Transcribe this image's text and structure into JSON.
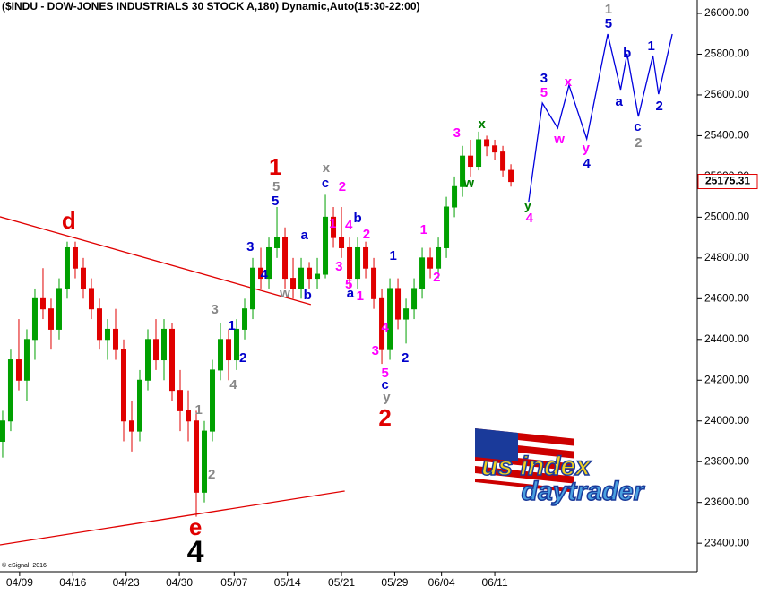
{
  "chart_data": {
    "type": "candlestick",
    "title": "($INDU - DOW-JONES INDUSTRIALS 30 STOCK A,180) Dynamic,Auto(15:30-22:00)",
    "credit": "© eSignal, 2016",
    "logo": [
      "us index",
      "daytrader"
    ],
    "up_color": "#00a000",
    "down_color": "#e00000",
    "xlim": [
      -0.33,
      86.1
    ],
    "ylim": [
      23260,
      26066
    ],
    "xticks": [
      {
        "value": 2.1,
        "label": "04/09"
      },
      {
        "value": 8.7,
        "label": "04/16"
      },
      {
        "value": 15.3,
        "label": "04/23"
      },
      {
        "value": 21.9,
        "label": "04/30"
      },
      {
        "value": 28.7,
        "label": "05/07"
      },
      {
        "value": 35.3,
        "label": "05/14"
      },
      {
        "value": 42,
        "label": "05/21"
      },
      {
        "value": 48.6,
        "label": "05/29"
      },
      {
        "value": 54.4,
        "label": "06/04"
      },
      {
        "value": 61,
        "label": "06/11"
      }
    ],
    "yticks": [
      {
        "value": 23400,
        "label": "23400.00"
      },
      {
        "value": 23600,
        "label": "23600.00"
      },
      {
        "value": 23800,
        "label": "23800.00"
      },
      {
        "value": 24000,
        "label": "24000.00"
      },
      {
        "value": 24200,
        "label": "24200.00"
      },
      {
        "value": 24400,
        "label": "24400.00"
      },
      {
        "value": 24600,
        "label": "24600.00"
      },
      {
        "value": 24800,
        "label": "24800.00"
      },
      {
        "value": 25000,
        "label": "25000.00"
      },
      {
        "value": 25200,
        "label": "25200.00"
      },
      {
        "value": 25400,
        "label": "25400.00"
      },
      {
        "value": 25600,
        "label": "25600.00"
      },
      {
        "value": 25800,
        "label": "25800.00"
      },
      {
        "value": 26000,
        "label": "26000.00"
      }
    ],
    "last_price": 25175.31,
    "open": [
      23900,
      24000,
      24300,
      24200,
      24400,
      24600,
      24550,
      24450,
      24650,
      24850,
      24750,
      24650,
      24550,
      24400,
      24450,
      24350,
      24000,
      23950,
      24200,
      24400,
      24300,
      24450,
      24150,
      24050,
      24000,
      23650,
      23950,
      24250,
      24400,
      24300,
      24450,
      24550,
      24750,
      24700,
      24850,
      24900,
      24700,
      24650,
      24750,
      24700,
      24720,
      25000,
      24900,
      24850,
      24700,
      24850,
      24750,
      24600,
      24350,
      24650,
      24500,
      24550,
      24650,
      24800,
      24750,
      24850,
      25050,
      25150,
      25300,
      25250,
      25380,
      25350,
      25320,
      25230
    ],
    "high": [
      24050,
      24350,
      24500,
      24450,
      24650,
      24750,
      24600,
      24700,
      24880,
      24880,
      24800,
      24700,
      24600,
      24500,
      24550,
      24400,
      24100,
      24250,
      24450,
      24500,
      24500,
      24480,
      24250,
      24150,
      24050,
      24000,
      24300,
      24480,
      24450,
      24500,
      24600,
      24800,
      24850,
      24900,
      25050,
      24950,
      24800,
      24800,
      24780,
      24800,
      25110,
      25050,
      25050,
      24900,
      24900,
      24880,
      24800,
      24650,
      24700,
      24700,
      24600,
      24700,
      24850,
      24850,
      24900,
      25100,
      25200,
      25350,
      25380,
      25420,
      25400,
      25380,
      25350,
      25260
    ],
    "low": [
      23820,
      23950,
      24150,
      24100,
      24300,
      24500,
      24350,
      24400,
      24600,
      24700,
      24600,
      24500,
      24350,
      24300,
      24300,
      23900,
      23850,
      23900,
      24150,
      24250,
      24200,
      24100,
      23950,
      23900,
      23530,
      23600,
      23900,
      24200,
      24200,
      24250,
      24400,
      24500,
      24650,
      24650,
      24800,
      24650,
      24600,
      24600,
      24650,
      24650,
      24700,
      24850,
      24800,
      24650,
      24650,
      24700,
      24550,
      24280,
      24300,
      24450,
      24380,
      24500,
      24600,
      24700,
      24700,
      24800,
      25000,
      25100,
      25200,
      25230,
      25300,
      25280,
      25200,
      25150
    ],
    "close": [
      24000,
      24300,
      24200,
      24400,
      24600,
      24550,
      24450,
      24650,
      24850,
      24750,
      24650,
      24550,
      24400,
      24450,
      24350,
      24000,
      23950,
      24200,
      24400,
      24300,
      24450,
      24150,
      24050,
      24000,
      23650,
      23950,
      24250,
      24400,
      24300,
      24450,
      24550,
      24750,
      24700,
      24850,
      24900,
      24700,
      24650,
      24750,
      24700,
      24720,
      25000,
      24900,
      24850,
      24700,
      24850,
      24750,
      24600,
      24350,
      24650,
      24500,
      24550,
      24650,
      24800,
      24750,
      24850,
      25050,
      25150,
      25300,
      25250,
      25380,
      25350,
      25320,
      25230,
      25175
    ],
    "lines": [
      {
        "color": "#e00000",
        "x": [
          -0.33,
          38.2
        ],
        "values": [
          25002,
          24571
        ]
      },
      {
        "color": "#e00000",
        "x": [
          -0.33,
          42.4
        ],
        "values": [
          23392,
          23656
        ]
      },
      {
        "color": "#0000dd",
        "x": [
          65.2,
          66.9,
          68.8,
          70.2,
          72.4,
          75,
          76.6,
          77.4,
          78.8,
          80.6,
          81.3,
          83
        ],
        "values": [
          25076,
          25560,
          25437,
          25648,
          25384,
          25899,
          25626,
          25802,
          25494,
          25793,
          25604,
          25899
        ]
      }
    ],
    "annotations": [
      {
        "text": "d",
        "color": "#e00000",
        "x": 8.2,
        "y": 24975
      },
      {
        "text": "e",
        "color": "#e00000",
        "x": 23.9,
        "y": 23471
      },
      {
        "text": "4",
        "color": "#000000",
        "x": 23.9,
        "y": 23348
      },
      {
        "text": "1",
        "color": "#888888",
        "x": 24.3,
        "y": 24052
      },
      {
        "text": "2",
        "color": "#888888",
        "x": 25.9,
        "y": 23735
      },
      {
        "text": "3",
        "color": "#888888",
        "x": 26.3,
        "y": 24544
      },
      {
        "text": "1",
        "color": "#0000cc",
        "x": 28.4,
        "y": 24465
      },
      {
        "text": "2",
        "color": "#0000cc",
        "x": 29.8,
        "y": 24307
      },
      {
        "text": "4",
        "color": "#888888",
        "x": 28.6,
        "y": 24175
      },
      {
        "text": "3",
        "color": "#0000cc",
        "x": 30.7,
        "y": 24852
      },
      {
        "text": "4",
        "color": "#0000cc",
        "x": 32.4,
        "y": 24716
      },
      {
        "text": "5",
        "color": "#0000cc",
        "x": 33.8,
        "y": 25076
      },
      {
        "text": "5",
        "color": "#888888",
        "x": 33.9,
        "y": 25147
      },
      {
        "text": "1",
        "color": "#e00000",
        "x": 33.8,
        "y": 25239
      },
      {
        "text": "w",
        "color": "#888888",
        "x": 35,
        "y": 24623
      },
      {
        "text": "b",
        "color": "#0000cc",
        "x": 37.8,
        "y": 24615
      },
      {
        "text": "a",
        "color": "#0000cc",
        "x": 37.4,
        "y": 24909
      },
      {
        "text": "x",
        "color": "#888888",
        "x": 40.1,
        "y": 25239
      },
      {
        "text": "c",
        "color": "#0000cc",
        "x": 40,
        "y": 25164
      },
      {
        "text": "2",
        "color": "#ff00ff",
        "x": 42.1,
        "y": 25147
      },
      {
        "text": "1",
        "color": "#ff00ff",
        "x": 40.9,
        "y": 24966
      },
      {
        "text": "4",
        "color": "#ff00ff",
        "x": 42.9,
        "y": 24958
      },
      {
        "text": "b",
        "color": "#0000cc",
        "x": 44,
        "y": 24993
      },
      {
        "text": "2",
        "color": "#ff00ff",
        "x": 45.1,
        "y": 24914
      },
      {
        "text": "3",
        "color": "#ff00ff",
        "x": 41.7,
        "y": 24755
      },
      {
        "text": "5",
        "color": "#ff00ff",
        "x": 42.9,
        "y": 24667
      },
      {
        "text": "a",
        "color": "#0000cc",
        "x": 43.1,
        "y": 24623
      },
      {
        "text": "1",
        "color": "#ff00ff",
        "x": 44.3,
        "y": 24610
      },
      {
        "text": "1",
        "color": "#0000cc",
        "x": 48.4,
        "y": 24808
      },
      {
        "text": "4",
        "color": "#ff00ff",
        "x": 47.4,
        "y": 24456
      },
      {
        "text": "3",
        "color": "#ff00ff",
        "x": 46.2,
        "y": 24342
      },
      {
        "text": "2",
        "color": "#0000cc",
        "x": 49.9,
        "y": 24307
      },
      {
        "text": "5",
        "color": "#ff00ff",
        "x": 47.4,
        "y": 24232
      },
      {
        "text": "c",
        "color": "#0000cc",
        "x": 47.4,
        "y": 24175
      },
      {
        "text": "y",
        "color": "#888888",
        "x": 47.6,
        "y": 24113
      },
      {
        "text": "2",
        "color": "#e00000",
        "x": 47.4,
        "y": 24008
      },
      {
        "text": "1",
        "color": "#ff00ff",
        "x": 52.2,
        "y": 24936
      },
      {
        "text": "2",
        "color": "#ff00ff",
        "x": 53.8,
        "y": 24703
      },
      {
        "text": "3",
        "color": "#ff00ff",
        "x": 56.3,
        "y": 25411
      },
      {
        "text": "w",
        "color": "#008000",
        "x": 57.8,
        "y": 25164
      },
      {
        "text": "x",
        "color": "#008000",
        "x": 59.4,
        "y": 25455
      },
      {
        "text": "y",
        "color": "#008000",
        "x": 65.1,
        "y": 25054
      },
      {
        "text": "4",
        "color": "#ff00ff",
        "x": 65.3,
        "y": 24993
      },
      {
        "text": "3",
        "color": "#0000cc",
        "x": 67.1,
        "y": 25679
      },
      {
        "text": "5",
        "color": "#ff00ff",
        "x": 67.1,
        "y": 25609
      },
      {
        "text": "w",
        "color": "#ff00ff",
        "x": 69,
        "y": 25380
      },
      {
        "text": "x",
        "color": "#ff00ff",
        "x": 70.1,
        "y": 25661
      },
      {
        "text": "y",
        "color": "#ff00ff",
        "x": 72.3,
        "y": 25336
      },
      {
        "text": "4",
        "color": "#0000cc",
        "x": 72.4,
        "y": 25261
      },
      {
        "text": "1",
        "color": "#888888",
        "x": 75.1,
        "y": 26018
      },
      {
        "text": "5",
        "color": "#0000cc",
        "x": 75.1,
        "y": 25947
      },
      {
        "text": "b",
        "color": "#0000cc",
        "x": 77.4,
        "y": 25802
      },
      {
        "text": "a",
        "color": "#0000cc",
        "x": 76.4,
        "y": 25565
      },
      {
        "text": "1",
        "color": "#0000cc",
        "x": 80.4,
        "y": 25837
      },
      {
        "text": "c",
        "color": "#0000cc",
        "x": 78.7,
        "y": 25441
      },
      {
        "text": "2",
        "color": "#888888",
        "x": 78.8,
        "y": 25362
      },
      {
        "text": "2",
        "color": "#0000cc",
        "x": 81.4,
        "y": 25543
      }
    ]
  }
}
